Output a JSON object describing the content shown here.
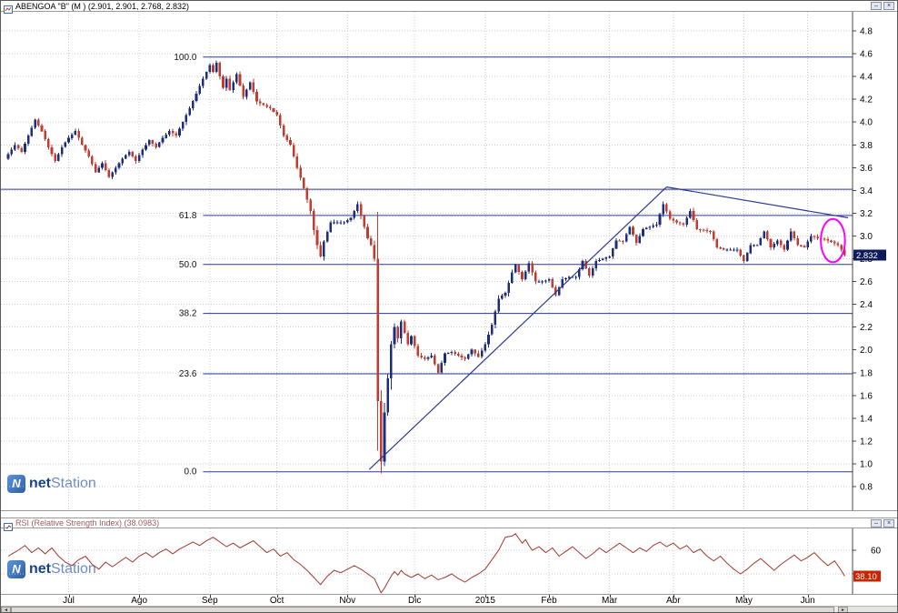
{
  "main_panel": {
    "title": "ABENGOA \"B\" (M ) (2.901, 2.901, 2.768, 2.832)"
  },
  "rsi_panel": {
    "title": "RSI (Relative Strength Index) (38.0983)"
  },
  "window_buttons": {
    "minimize": "–",
    "close": "×"
  },
  "watermark": {
    "logo_letter": "N",
    "net": "net",
    "station": "Station"
  },
  "scrollbar": {
    "left_arrow": "◄",
    "right_arrow": "►"
  },
  "chart_data": [
    {
      "type": "candlestick",
      "symbol": "ABENGOA \"B\"",
      "period": "M",
      "ohlc_display": {
        "open": 2.901,
        "high": 2.901,
        "low": 2.768,
        "close": 2.832
      },
      "last_price": 2.832,
      "y_axis": {
        "min": 0.8,
        "max": 4.8,
        "step": 0.2,
        "ticks": [
          4.8,
          4.6,
          4.4,
          4.2,
          4.0,
          3.8,
          3.6,
          3.4,
          3.2,
          3.0,
          2.8,
          2.6,
          2.4,
          2.2,
          2.0,
          1.8,
          1.6,
          1.4,
          1.2,
          1.0,
          0.8
        ]
      },
      "x_axis": {
        "days_total": 250,
        "months": [
          {
            "label": "Jul",
            "day": 18
          },
          {
            "label": "Ago",
            "day": 39
          },
          {
            "label": "Sep",
            "day": 60
          },
          {
            "label": "Oct",
            "day": 80
          },
          {
            "label": "Nov",
            "day": 101
          },
          {
            "label": "Dic",
            "day": 121
          },
          {
            "label": "2015",
            "day": 142
          },
          {
            "label": "Feb",
            "day": 161
          },
          {
            "label": "Mar",
            "day": 179
          },
          {
            "label": "Abr",
            "day": 198
          },
          {
            "label": "May",
            "day": 219
          },
          {
            "label": "Jun",
            "day": 238
          }
        ]
      },
      "close_anchors": [
        [
          0,
          3.72
        ],
        [
          2,
          3.8
        ],
        [
          4,
          3.74
        ],
        [
          6,
          3.88
        ],
        [
          8,
          4.02
        ],
        [
          10,
          3.92
        ],
        [
          12,
          3.78
        ],
        [
          14,
          3.66
        ],
        [
          16,
          3.78
        ],
        [
          18,
          3.86
        ],
        [
          20,
          3.92
        ],
        [
          22,
          3.8
        ],
        [
          24,
          3.7
        ],
        [
          26,
          3.56
        ],
        [
          28,
          3.64
        ],
        [
          30,
          3.52
        ],
        [
          32,
          3.6
        ],
        [
          34,
          3.68
        ],
        [
          36,
          3.74
        ],
        [
          38,
          3.66
        ],
        [
          40,
          3.76
        ],
        [
          42,
          3.84
        ],
        [
          44,
          3.78
        ],
        [
          46,
          3.86
        ],
        [
          48,
          3.92
        ],
        [
          50,
          3.88
        ],
        [
          52,
          4.0
        ],
        [
          54,
          4.12
        ],
        [
          56,
          4.25
        ],
        [
          58,
          4.38
        ],
        [
          60,
          4.5
        ],
        [
          61,
          4.44
        ],
        [
          62,
          4.52
        ],
        [
          63,
          4.4
        ],
        [
          64,
          4.3
        ],
        [
          65,
          4.38
        ],
        [
          66,
          4.28
        ],
        [
          68,
          4.42
        ],
        [
          70,
          4.22
        ],
        [
          72,
          4.35
        ],
        [
          74,
          4.18
        ],
        [
          76,
          4.15
        ],
        [
          78,
          4.12
        ],
        [
          80,
          4.06
        ],
        [
          82,
          3.88
        ],
        [
          84,
          3.8
        ],
        [
          86,
          3.6
        ],
        [
          88,
          3.42
        ],
        [
          90,
          3.22
        ],
        [
          91,
          3.05
        ],
        [
          92,
          2.92
        ],
        [
          93,
          2.82
        ],
        [
          94,
          2.95
        ],
        [
          96,
          3.12
        ],
        [
          98,
          3.12
        ],
        [
          100,
          3.12
        ],
        [
          102,
          3.16
        ],
        [
          104,
          3.28
        ],
        [
          106,
          3.08
        ],
        [
          107,
          2.98
        ],
        [
          108,
          2.92
        ],
        [
          109,
          2.8
        ],
        [
          110,
          1.55
        ],
        [
          111,
          1.02
        ],
        [
          112,
          1.45
        ],
        [
          113,
          1.75
        ],
        [
          114,
          2.05
        ],
        [
          115,
          2.2
        ],
        [
          116,
          2.1
        ],
        [
          117,
          2.25
        ],
        [
          118,
          2.15
        ],
        [
          119,
          2.05
        ],
        [
          120,
          2.12
        ],
        [
          122,
          1.95
        ],
        [
          124,
          1.92
        ],
        [
          126,
          1.95
        ],
        [
          128,
          1.8
        ],
        [
          130,
          1.97
        ],
        [
          132,
          1.98
        ],
        [
          134,
          1.95
        ],
        [
          136,
          1.92
        ],
        [
          138,
          2.0
        ],
        [
          140,
          1.94
        ],
        [
          142,
          2.05
        ],
        [
          144,
          2.22
        ],
        [
          146,
          2.45
        ],
        [
          148,
          2.5
        ],
        [
          150,
          2.68
        ],
        [
          151,
          2.75
        ],
        [
          153,
          2.62
        ],
        [
          155,
          2.76
        ],
        [
          157,
          2.6
        ],
        [
          159,
          2.6
        ],
        [
          161,
          2.62
        ],
        [
          163,
          2.48
        ],
        [
          165,
          2.62
        ],
        [
          167,
          2.64
        ],
        [
          169,
          2.64
        ],
        [
          171,
          2.78
        ],
        [
          173,
          2.65
        ],
        [
          175,
          2.78
        ],
        [
          177,
          2.8
        ],
        [
          179,
          2.82
        ],
        [
          181,
          2.96
        ],
        [
          183,
          2.95
        ],
        [
          185,
          3.08
        ],
        [
          187,
          2.94
        ],
        [
          189,
          3.06
        ],
        [
          191,
          3.08
        ],
        [
          193,
          3.1
        ],
        [
          195,
          3.28
        ],
        [
          197,
          3.15
        ],
        [
          199,
          3.12
        ],
        [
          201,
          3.1
        ],
        [
          203,
          3.22
        ],
        [
          205,
          3.06
        ],
        [
          207,
          3.05
        ],
        [
          209,
          3.04
        ],
        [
          211,
          2.9
        ],
        [
          213,
          2.88
        ],
        [
          215,
          2.88
        ],
        [
          217,
          2.88
        ],
        [
          219,
          2.78
        ],
        [
          221,
          2.92
        ],
        [
          223,
          2.92
        ],
        [
          225,
          3.04
        ],
        [
          227,
          2.9
        ],
        [
          229,
          2.96
        ],
        [
          231,
          2.88
        ],
        [
          233,
          3.04
        ],
        [
          235,
          2.92
        ],
        [
          237,
          2.9
        ],
        [
          239,
          3.0
        ],
        [
          241,
          2.98
        ],
        [
          243,
          2.97
        ],
        [
          245,
          2.95
        ],
        [
          247,
          2.92
        ],
        [
          248,
          2.88
        ],
        [
          249,
          2.832
        ]
      ],
      "fibonacci": {
        "start_day": 58,
        "levels": [
          {
            "label": "100.0",
            "price": 4.57
          },
          {
            "label": "61.8",
            "price": 3.18
          },
          {
            "label": "50.0",
            "price": 2.75
          },
          {
            "label": "38.2",
            "price": 2.32
          },
          {
            "label": "23.6",
            "price": 1.79
          },
          {
            "label": "0.0",
            "price": 0.93
          }
        ]
      },
      "hline": {
        "price": 3.41
      },
      "trendlines": [
        {
          "from": [
            107.5,
            0.95
          ],
          "to": [
            196,
            3.43
          ]
        },
        {
          "from": [
            196,
            3.43
          ],
          "to": [
            250,
            3.16
          ]
        }
      ],
      "highlight_ellipse": {
        "day": 245.5,
        "price": 2.96,
        "rx_days": 3.6,
        "ry_price": 0.19
      },
      "colors": {
        "up": "#1c2d80",
        "down": "#c23b2f",
        "line": "#2b3990",
        "ellipse": "#ff00ff",
        "badge_bg": "#101c5a",
        "grid": "#cccccc"
      }
    },
    {
      "type": "line",
      "name": "RSI",
      "last_value": 38.1,
      "y_ticks": [
        60,
        40
      ],
      "color": "#a03a2e",
      "badge_bg": "#cc2200",
      "anchors": [
        [
          0,
          55
        ],
        [
          3,
          60
        ],
        [
          5,
          64
        ],
        [
          7,
          58
        ],
        [
          9,
          62
        ],
        [
          11,
          57
        ],
        [
          13,
          62
        ],
        [
          15,
          55
        ],
        [
          17,
          50
        ],
        [
          19,
          47
        ],
        [
          21,
          52
        ],
        [
          23,
          55
        ],
        [
          25,
          48
        ],
        [
          27,
          44
        ],
        [
          29,
          50
        ],
        [
          31,
          46
        ],
        [
          33,
          50
        ],
        [
          35,
          54
        ],
        [
          37,
          50
        ],
        [
          39,
          55
        ],
        [
          41,
          58
        ],
        [
          43,
          54
        ],
        [
          45,
          58
        ],
        [
          47,
          61
        ],
        [
          49,
          57
        ],
        [
          51,
          61
        ],
        [
          53,
          64
        ],
        [
          55,
          67
        ],
        [
          57,
          64
        ],
        [
          59,
          68
        ],
        [
          61,
          71
        ],
        [
          63,
          67
        ],
        [
          65,
          63
        ],
        [
          67,
          66
        ],
        [
          69,
          62
        ],
        [
          71,
          65
        ],
        [
          73,
          68
        ],
        [
          75,
          63
        ],
        [
          77,
          58
        ],
        [
          79,
          61
        ],
        [
          81,
          55
        ],
        [
          83,
          58
        ],
        [
          85,
          52
        ],
        [
          87,
          48
        ],
        [
          89,
          43
        ],
        [
          91,
          37
        ],
        [
          93,
          31
        ],
        [
          95,
          38
        ],
        [
          97,
          43
        ],
        [
          99,
          41
        ],
        [
          101,
          44
        ],
        [
          103,
          47
        ],
        [
          105,
          44
        ],
        [
          107,
          40
        ],
        [
          109,
          36
        ],
        [
          110,
          30
        ],
        [
          111,
          24
        ],
        [
          112,
          28
        ],
        [
          113,
          33
        ],
        [
          114,
          38
        ],
        [
          115,
          42
        ],
        [
          116,
          39
        ],
        [
          117,
          43
        ],
        [
          118,
          40
        ],
        [
          120,
          37
        ],
        [
          122,
          40
        ],
        [
          124,
          36
        ],
        [
          126,
          39
        ],
        [
          128,
          35
        ],
        [
          130,
          37
        ],
        [
          132,
          40
        ],
        [
          134,
          36
        ],
        [
          136,
          33
        ],
        [
          138,
          37
        ],
        [
          140,
          40
        ],
        [
          142,
          44
        ],
        [
          144,
          52
        ],
        [
          146,
          60
        ],
        [
          148,
          71
        ],
        [
          150,
          72
        ],
        [
          151,
          74
        ],
        [
          152,
          70
        ],
        [
          153,
          66
        ],
        [
          154,
          69
        ],
        [
          155,
          64
        ],
        [
          156,
          60
        ],
        [
          158,
          63
        ],
        [
          160,
          58
        ],
        [
          162,
          62
        ],
        [
          164,
          55
        ],
        [
          166,
          59
        ],
        [
          168,
          63
        ],
        [
          170,
          58
        ],
        [
          172,
          53
        ],
        [
          174,
          57
        ],
        [
          176,
          62
        ],
        [
          178,
          58
        ],
        [
          180,
          62
        ],
        [
          182,
          66
        ],
        [
          184,
          62
        ],
        [
          186,
          58
        ],
        [
          188,
          62
        ],
        [
          190,
          59
        ],
        [
          192,
          64
        ],
        [
          194,
          67
        ],
        [
          196,
          63
        ],
        [
          198,
          66
        ],
        [
          200,
          61
        ],
        [
          202,
          64
        ],
        [
          204,
          58
        ],
        [
          206,
          61
        ],
        [
          208,
          55
        ],
        [
          210,
          51
        ],
        [
          212,
          55
        ],
        [
          214,
          49
        ],
        [
          216,
          44
        ],
        [
          218,
          40
        ],
        [
          220,
          44
        ],
        [
          222,
          49
        ],
        [
          224,
          53
        ],
        [
          226,
          48
        ],
        [
          228,
          43
        ],
        [
          230,
          48
        ],
        [
          232,
          52
        ],
        [
          234,
          56
        ],
        [
          236,
          51
        ],
        [
          238,
          54
        ],
        [
          240,
          58
        ],
        [
          242,
          52
        ],
        [
          244,
          47
        ],
        [
          246,
          51
        ],
        [
          248,
          43
        ],
        [
          249,
          38.1
        ]
      ]
    }
  ]
}
